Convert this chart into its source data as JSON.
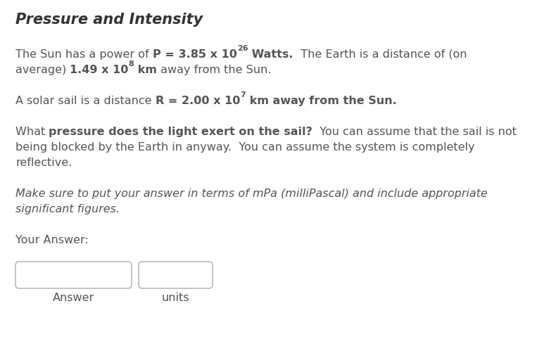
{
  "title": "Pressure and Intensity",
  "background_color": "#ffffff",
  "text_color": "#555555",
  "fig_width": 7.8,
  "fig_height": 4.82,
  "dpi": 100,
  "answer_label": "Answer",
  "units_label": "units"
}
